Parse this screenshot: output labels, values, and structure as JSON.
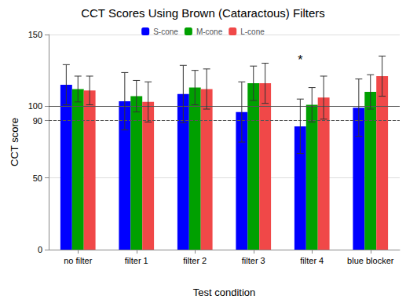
{
  "chart_data": {
    "type": "bar",
    "title": "CCT Scores Using Brown (Cataractous) Filters",
    "x_label": "Test condition",
    "y_label": "CCT score",
    "categories": [
      "no filter",
      "filter 1",
      "filter 2",
      "filter 3",
      "filter 4",
      "blue blocker"
    ],
    "series": [
      {
        "name": "S-cone",
        "color": "#0000ff",
        "values": [
          115,
          103.5,
          108.5,
          96,
          86,
          99
        ],
        "errors": [
          14,
          20,
          20,
          21,
          19,
          20
        ]
      },
      {
        "name": "M-cone",
        "color": "#00a000",
        "values": [
          112,
          107,
          113,
          116,
          101,
          110
        ],
        "errors": [
          9,
          11,
          12,
          12,
          12,
          12
        ]
      },
      {
        "name": "L-cone",
        "color": "#f04848",
        "values": [
          111,
          103,
          112,
          116,
          106,
          121
        ],
        "errors": [
          10,
          14,
          14,
          14,
          15,
          14
        ]
      }
    ],
    "ylim": [
      0,
      150
    ],
    "yticks": [
      0,
      50,
      90,
      100,
      150
    ],
    "grid": true,
    "legend": "top",
    "reference_lines": [
      {
        "value": 100,
        "line_style": "solid"
      },
      {
        "value": 90,
        "line_style": "dashed"
      }
    ],
    "annotations": [
      {
        "text": "*",
        "x": "filter 4",
        "series": "S-cone",
        "y": 132
      }
    ]
  }
}
